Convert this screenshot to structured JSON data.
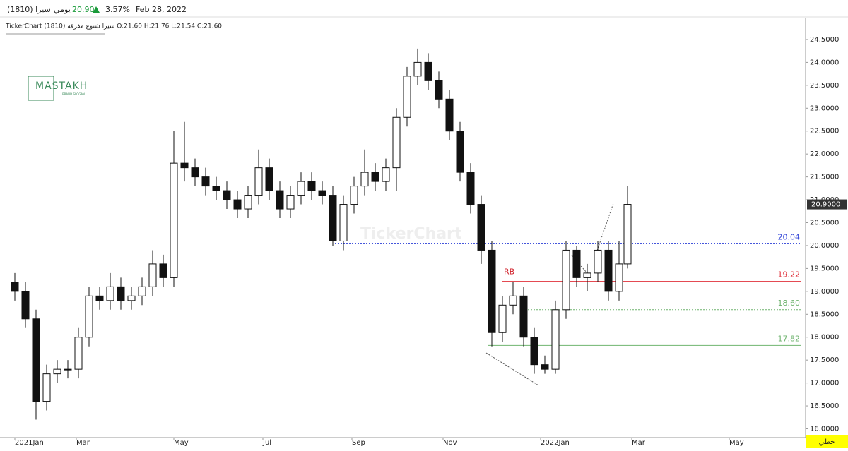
{
  "chart_data": {
    "type": "candlestick",
    "header": {
      "symbol": "سيرا (1810)",
      "period": "يومي",
      "last": "20.90",
      "change": "3.57%",
      "date": "Feb 28, 2022",
      "ohlc_line": "TickerChart سيرا شنوع مفرقة (1810) O:21.60 H:21.76 L:21.54 C:21.60"
    },
    "logo": "MASTAKH",
    "logo_sub": "BRAND SLOGAN",
    "watermark": "TickerChart",
    "chart_style": "خطي",
    "x": [
      0,
      5,
      10,
      15,
      20,
      25,
      30,
      35,
      40,
      45,
      50,
      55,
      60,
      65,
      70,
      75,
      80,
      85,
      90,
      95,
      100,
      105,
      110,
      115,
      120,
      125,
      130,
      135,
      140,
      145,
      150,
      155,
      160,
      165,
      170,
      175,
      180,
      185,
      190,
      195,
      200,
      205,
      210,
      215,
      220,
      225,
      230,
      235,
      240,
      245,
      250,
      255,
      260,
      265,
      270,
      275,
      280,
      285,
      289
    ],
    "open": [
      19.2,
      19.0,
      18.4,
      16.6,
      17.2,
      17.3,
      17.3,
      18.0,
      18.9,
      18.8,
      19.1,
      18.8,
      18.9,
      19.1,
      19.6,
      19.3,
      21.8,
      21.7,
      21.5,
      21.3,
      21.2,
      21.0,
      20.8,
      21.1,
      21.7,
      21.2,
      20.8,
      21.1,
      21.4,
      21.2,
      21.1,
      20.1,
      20.9,
      21.3,
      21.6,
      21.4,
      21.7,
      22.8,
      23.7,
      24.0,
      23.6,
      23.2,
      22.5,
      21.6,
      20.9,
      19.9,
      18.1,
      18.7,
      18.9,
      18.0,
      17.4,
      17.3,
      18.6,
      19.9,
      19.3,
      19.4,
      19.9,
      19.0,
      19.6
    ],
    "high": [
      19.4,
      19.2,
      18.6,
      17.4,
      17.5,
      17.5,
      18.2,
      19.1,
      19.1,
      19.4,
      19.3,
      19.1,
      19.3,
      19.9,
      19.8,
      22.5,
      22.7,
      21.9,
      21.7,
      21.5,
      21.4,
      21.2,
      21.3,
      22.1,
      21.9,
      21.4,
      21.3,
      21.6,
      21.6,
      21.4,
      21.3,
      21.1,
      21.5,
      22.1,
      21.8,
      21.9,
      23.0,
      23.9,
      24.3,
      24.2,
      23.8,
      23.4,
      22.7,
      21.8,
      21.1,
      20.1,
      18.9,
      19.2,
      19.1,
      18.2,
      17.6,
      18.8,
      20.1,
      20.0,
      19.6,
      20.1,
      20.1,
      20.1,
      21.3
    ],
    "low": [
      18.8,
      18.2,
      16.2,
      16.4,
      17.0,
      17.1,
      17.1,
      17.8,
      18.6,
      18.6,
      18.6,
      18.6,
      18.7,
      18.9,
      19.1,
      19.1,
      21.4,
      21.3,
      21.1,
      21.0,
      20.8,
      20.6,
      20.6,
      20.9,
      21.0,
      20.6,
      20.6,
      20.9,
      21.0,
      20.9,
      20.0,
      19.9,
      20.7,
      21.1,
      21.2,
      21.2,
      21.2,
      22.6,
      23.5,
      23.4,
      23.0,
      22.3,
      21.4,
      20.7,
      19.6,
      17.8,
      17.9,
      18.5,
      17.8,
      17.2,
      17.2,
      17.2,
      18.4,
      19.1,
      19.0,
      19.2,
      18.8,
      18.8,
      19.5
    ],
    "close": [
      19.0,
      18.4,
      16.6,
      17.2,
      17.3,
      17.3,
      18.0,
      18.9,
      18.8,
      19.1,
      18.8,
      18.9,
      19.1,
      19.6,
      19.3,
      21.8,
      21.7,
      21.5,
      21.3,
      21.2,
      21.0,
      20.8,
      21.1,
      21.7,
      21.2,
      20.8,
      21.1,
      21.4,
      21.2,
      21.1,
      20.1,
      20.9,
      21.3,
      21.6,
      21.4,
      21.7,
      22.8,
      23.7,
      24.0,
      23.6,
      23.2,
      22.5,
      21.6,
      20.9,
      19.9,
      18.1,
      18.7,
      18.9,
      18.0,
      17.4,
      17.3,
      18.6,
      19.9,
      19.3,
      19.4,
      19.9,
      19.0,
      19.6,
      20.9
    ],
    "xlim": [
      -7,
      373
    ],
    "ylim": [
      15.9,
      24.9
    ],
    "xticks": [
      {
        "value": 0,
        "label": "2021Jan"
      },
      {
        "value": 29,
        "label": "Mar"
      },
      {
        "value": 75,
        "label": "May"
      },
      {
        "value": 117,
        "label": "Jul"
      },
      {
        "value": 159,
        "label": "Sep"
      },
      {
        "value": 202,
        "label": "Nov"
      },
      {
        "value": 248,
        "label": "2022Jan"
      },
      {
        "value": 291,
        "label": "Mar"
      },
      {
        "value": 337,
        "label": "May"
      }
    ],
    "yticks": [
      {
        "value": 16,
        "label": "16.0000"
      },
      {
        "value": 16.5,
        "label": "16.5000"
      },
      {
        "value": 17,
        "label": "17.0000"
      },
      {
        "value": 17.5,
        "label": "17.5000"
      },
      {
        "value": 18,
        "label": "18.0000"
      },
      {
        "value": 18.5,
        "label": "18.5000"
      },
      {
        "value": 19,
        "label": "19.0000"
      },
      {
        "value": 19.5,
        "label": "19.5000"
      },
      {
        "value": 20,
        "label": "20.0000"
      },
      {
        "value": 20.5,
        "label": "20.5000"
      },
      {
        "value": 21,
        "label": "21.0000"
      },
      {
        "value": 21.5,
        "label": "21.5000"
      },
      {
        "value": 22,
        "label": "22.0000"
      },
      {
        "value": 22.5,
        "label": "22.5000"
      },
      {
        "value": 23,
        "label": "23.0000"
      },
      {
        "value": 23.5,
        "label": "23.5000"
      },
      {
        "value": 24,
        "label": "24.0000"
      },
      {
        "value": 24.5,
        "label": "24.5000"
      }
    ],
    "last_price": {
      "value": 20.9,
      "label": "20.9000"
    },
    "levels": [
      {
        "value": 20.04,
        "start": 151,
        "color": "#2b3fd6",
        "dash": true
      },
      {
        "value": 19.22,
        "start": 230,
        "color": "#e0303a",
        "dash": false
      },
      {
        "value": 18.6,
        "label": "18.60",
        "start": 242,
        "color": "#6fb46f",
        "dash": true
      },
      {
        "value": 17.82,
        "start": 223,
        "color": "#6fb46f",
        "dash": false
      }
    ],
    "annotation": {
      "text": "RB",
      "color": "#d0202a"
    }
  }
}
